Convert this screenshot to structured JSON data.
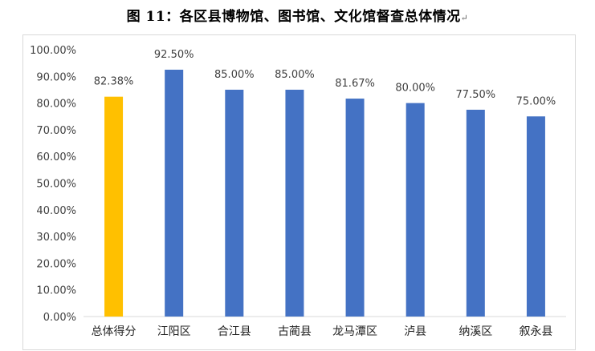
{
  "title": "图 11：各区县博物馆、图书馆、文化馆督查总体情况",
  "title_mark": "↵",
  "chart_data": {
    "type": "bar",
    "title": "",
    "xlabel": "",
    "ylabel": "",
    "ylim": [
      0,
      100
    ],
    "ytick_step": 10,
    "ytick_format": "percent-2dp",
    "grid": false,
    "legend": "none",
    "categories": [
      "总体得分",
      "江阳区",
      "合江县",
      "古蔺县",
      "龙马潭区",
      "泸县",
      "纳溪区",
      "叙永县"
    ],
    "values": [
      82.38,
      92.5,
      85.0,
      85.0,
      81.67,
      80.0,
      77.5,
      75.0
    ],
    "data_labels": [
      "82.38%",
      "92.50%",
      "85.00%",
      "85.00%",
      "81.67%",
      "80.00%",
      "77.50%",
      "75.00%"
    ],
    "colors": [
      "#FFC000",
      "#4472C4",
      "#4472C4",
      "#4472C4",
      "#4472C4",
      "#4472C4",
      "#4472C4",
      "#4472C4"
    ]
  }
}
